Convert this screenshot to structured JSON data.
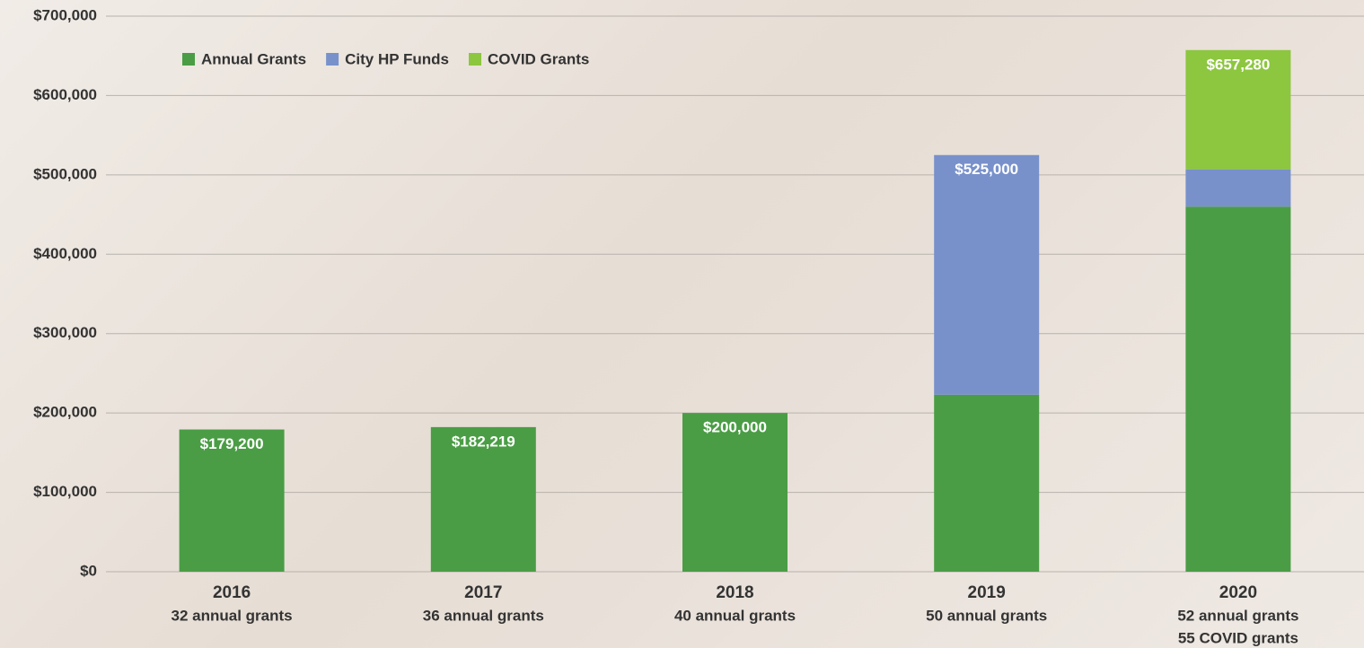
{
  "chart_data": {
    "type": "stacked_bar",
    "categories": [
      "2016",
      "2017",
      "2018",
      "2019",
      "2020"
    ],
    "category_notes": [
      [
        "32 annual grants"
      ],
      [
        "36 annual grants"
      ],
      [
        "40 annual grants"
      ],
      [
        "50 annual grants"
      ],
      [
        "52 annual grants",
        "55 COVID grants"
      ]
    ],
    "series": [
      {
        "name": "Annual Grants",
        "color": "#4a9d45",
        "values": [
          179200,
          182219,
          200000,
          223000,
          460000
        ]
      },
      {
        "name": "City HP Funds",
        "color": "#7891cb",
        "values": [
          null,
          null,
          null,
          302000,
          47000
        ]
      },
      {
        "name": "COVID Grants",
        "color": "#8dc63f",
        "values": [
          null,
          null,
          null,
          null,
          150280
        ]
      }
    ],
    "totals": [
      179200,
      182219,
      200000,
      525000,
      657280
    ],
    "total_labels": [
      "$179,200",
      "$182,219",
      "$200,000",
      "$525,000",
      "$657,280"
    ],
    "ylim": [
      0,
      700000
    ],
    "yticks": [
      {
        "value": 0,
        "label": "$0"
      },
      {
        "value": 100000,
        "label": "$100,000"
      },
      {
        "value": 200000,
        "label": "$200,000"
      },
      {
        "value": 300000,
        "label": "$300,000"
      },
      {
        "value": 400000,
        "label": "$400,000"
      },
      {
        "value": 500000,
        "label": "$500,000"
      },
      {
        "value": 600000,
        "label": "$600,000"
      },
      {
        "value": 700000,
        "label": "$700,000"
      }
    ],
    "grid": true,
    "legend": "top-left"
  }
}
